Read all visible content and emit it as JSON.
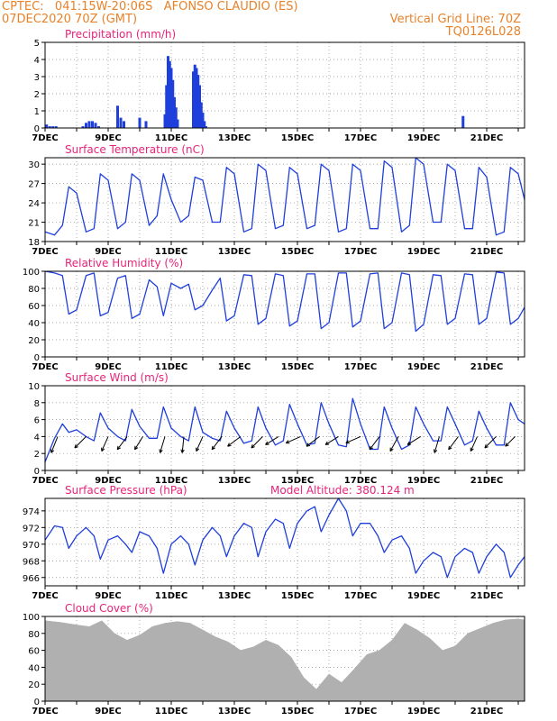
{
  "header": {
    "line1_left": "CPTEC:   041:15W-20:06S   AFONSO CLAUDIO (ES)",
    "line2_left": "07DEC2020 70Z (GMT)",
    "line2_right": "Vertical Grid Line: 70Z",
    "line3_right": "TQ0126L028"
  },
  "colors": {
    "header": "#e8822a",
    "title": "#e8237a",
    "series": "#1f3fdc",
    "cloud": "#b0b0b0",
    "grid": "#888888"
  },
  "x_ticks": [
    "7DEC",
    "9DEC",
    "11DEC",
    "13DEC",
    "15DEC",
    "17DEC",
    "19DEC",
    "21DEC"
  ],
  "chart_data": [
    {
      "id": "precip",
      "type": "bar",
      "title": "Precipitation (mm/h)",
      "ylim": [
        0,
        5
      ],
      "yticks": [
        0,
        1,
        2,
        3,
        4,
        5
      ],
      "x_range_days": [
        7,
        22.2
      ],
      "x": [
        7.05,
        7.15,
        7.25,
        7.35,
        8.2,
        8.3,
        8.4,
        8.5,
        8.6,
        8.7,
        9.3,
        9.4,
        9.5,
        10.0,
        10.2,
        10.8,
        10.85,
        10.9,
        10.95,
        11.0,
        11.05,
        11.1,
        11.15,
        11.2,
        11.7,
        11.75,
        11.8,
        11.85,
        11.9,
        11.95,
        12.0,
        12.05,
        12.1,
        20.25
      ],
      "values": [
        0.2,
        0.1,
        0.1,
        0.1,
        0.1,
        0.3,
        0.4,
        0.4,
        0.3,
        0.1,
        1.3,
        0.6,
        0.4,
        0.6,
        0.4,
        0.8,
        2.5,
        4.2,
        3.9,
        3.5,
        2.8,
        1.8,
        1.2,
        0.5,
        3.3,
        3.7,
        3.5,
        3.1,
        2.5,
        1.5,
        0.9,
        0.4,
        0.1,
        0.7
      ]
    },
    {
      "id": "temp",
      "type": "line",
      "title": "Surface Temperature (nC)",
      "ylim": [
        18,
        31
      ],
      "yticks": [
        18,
        21,
        24,
        27,
        30
      ],
      "x_range_days": [
        7,
        22.2
      ],
      "x": [
        7.0,
        7.3,
        7.55,
        7.75,
        8.0,
        8.3,
        8.55,
        8.75,
        9.0,
        9.3,
        9.55,
        9.75,
        10.0,
        10.3,
        10.55,
        10.75,
        11.0,
        11.3,
        11.55,
        11.75,
        12.0,
        12.3,
        12.55,
        12.75,
        13.0,
        13.3,
        13.55,
        13.75,
        14.0,
        14.3,
        14.55,
        14.75,
        15.0,
        15.3,
        15.55,
        15.75,
        16.0,
        16.3,
        16.55,
        16.75,
        17.0,
        17.3,
        17.55,
        17.75,
        18.0,
        18.3,
        18.55,
        18.75,
        19.0,
        19.3,
        19.55,
        19.75,
        20.0,
        20.3,
        20.55,
        20.75,
        21.0,
        21.3,
        21.55,
        21.75,
        22.0,
        22.2
      ],
      "values": [
        19.5,
        19.0,
        20.5,
        26.5,
        25.5,
        19.5,
        20.0,
        28.5,
        27.5,
        20.0,
        21.0,
        28.5,
        27.5,
        20.5,
        22.0,
        28.5,
        24.5,
        21.0,
        22.0,
        28.0,
        27.5,
        21.0,
        21.0,
        29.5,
        28.5,
        19.5,
        20.0,
        30.0,
        29.0,
        20.0,
        20.5,
        29.5,
        28.5,
        20.0,
        20.5,
        30.0,
        29.0,
        19.5,
        20.0,
        30.0,
        29.0,
        20.0,
        20.0,
        30.5,
        29.5,
        19.5,
        20.5,
        31.0,
        30.0,
        21.0,
        21.0,
        30.0,
        29.0,
        20.0,
        20.0,
        29.5,
        28.0,
        19.0,
        19.5,
        29.5,
        28.5,
        24.5
      ]
    },
    {
      "id": "rh",
      "type": "line",
      "title": "Relative Humidity (%)",
      "ylim": [
        0,
        100
      ],
      "yticks": [
        0,
        20,
        40,
        60,
        80,
        100
      ],
      "x_range_days": [
        7,
        22.2
      ],
      "x": [
        7.0,
        7.3,
        7.55,
        7.75,
        8.0,
        8.3,
        8.55,
        8.75,
        9.0,
        9.3,
        9.55,
        9.75,
        10.0,
        10.3,
        10.55,
        10.75,
        11.0,
        11.3,
        11.55,
        11.75,
        12.0,
        12.3,
        12.55,
        12.75,
        13.0,
        13.3,
        13.55,
        13.75,
        14.0,
        14.3,
        14.55,
        14.75,
        15.0,
        15.3,
        15.55,
        15.75,
        16.0,
        16.3,
        16.55,
        16.75,
        17.0,
        17.3,
        17.55,
        17.75,
        18.0,
        18.3,
        18.55,
        18.75,
        19.0,
        19.3,
        19.55,
        19.75,
        20.0,
        20.3,
        20.55,
        20.75,
        21.0,
        21.3,
        21.55,
        21.75,
        22.0,
        22.2
      ],
      "values": [
        100,
        98,
        95,
        50,
        55,
        95,
        98,
        48,
        52,
        92,
        95,
        45,
        50,
        90,
        82,
        48,
        86,
        80,
        85,
        55,
        60,
        78,
        92,
        42,
        48,
        96,
        95,
        38,
        45,
        97,
        95,
        36,
        42,
        97,
        97,
        33,
        40,
        98,
        98,
        35,
        42,
        97,
        98,
        33,
        40,
        98,
        96,
        30,
        38,
        96,
        95,
        38,
        45,
        97,
        96,
        38,
        45,
        99,
        98,
        38,
        45,
        58
      ]
    },
    {
      "id": "wind",
      "type": "line",
      "title": "Surface Wind (m/s)",
      "ylim": [
        0,
        10
      ],
      "yticks": [
        0,
        2,
        4,
        6,
        8,
        10
      ],
      "x_range_days": [
        7,
        22.2
      ],
      "x": [
        7.0,
        7.3,
        7.55,
        7.75,
        8.0,
        8.3,
        8.55,
        8.75,
        9.0,
        9.3,
        9.55,
        9.75,
        10.0,
        10.3,
        10.55,
        10.75,
        11.0,
        11.3,
        11.55,
        11.75,
        12.0,
        12.3,
        12.55,
        12.75,
        13.0,
        13.3,
        13.55,
        13.75,
        14.0,
        14.3,
        14.55,
        14.75,
        15.0,
        15.3,
        15.55,
        15.75,
        16.0,
        16.3,
        16.55,
        16.75,
        17.0,
        17.3,
        17.55,
        17.75,
        18.0,
        18.3,
        18.55,
        18.75,
        19.0,
        19.3,
        19.55,
        19.75,
        20.0,
        20.3,
        20.55,
        20.75,
        21.0,
        21.3,
        21.55,
        21.75,
        22.0,
        22.2
      ],
      "values": [
        1.0,
        3.8,
        5.5,
        4.5,
        4.8,
        4.0,
        3.5,
        6.8,
        5.0,
        4.0,
        3.5,
        7.2,
        5.2,
        3.8,
        3.8,
        7.5,
        5.0,
        4.0,
        3.5,
        7.5,
        4.5,
        3.8,
        3.5,
        7.0,
        5.0,
        3.2,
        3.5,
        7.5,
        5.0,
        3.0,
        3.5,
        7.8,
        5.5,
        3.0,
        3.2,
        8.0,
        5.5,
        3.0,
        2.8,
        8.5,
        5.5,
        2.5,
        2.5,
        7.5,
        5.0,
        2.5,
        3.0,
        7.5,
        5.5,
        3.5,
        3.5,
        7.5,
        5.5,
        3.0,
        3.5,
        7.0,
        5.0,
        3.0,
        3.0,
        8.0,
        6.0,
        5.5
      ],
      "arrows": [
        {
          "x": 7.4,
          "u": -0.4,
          "v": -1.0
        },
        {
          "x": 8.3,
          "u": -0.7,
          "v": -0.7
        },
        {
          "x": 9.0,
          "u": -0.4,
          "v": -0.9
        },
        {
          "x": 9.6,
          "u": -0.6,
          "v": -0.8
        },
        {
          "x": 10.1,
          "u": -0.5,
          "v": -0.8
        },
        {
          "x": 10.8,
          "u": -0.3,
          "v": -1.0
        },
        {
          "x": 11.4,
          "u": -0.1,
          "v": -1.0
        },
        {
          "x": 12.0,
          "u": -0.4,
          "v": -0.9
        },
        {
          "x": 12.6,
          "u": -0.6,
          "v": -0.8
        },
        {
          "x": 13.2,
          "u": -0.8,
          "v": -0.6
        },
        {
          "x": 13.9,
          "u": -0.7,
          "v": -0.7
        },
        {
          "x": 14.4,
          "u": -0.8,
          "v": -0.5
        },
        {
          "x": 15.1,
          "u": -0.9,
          "v": -0.4
        },
        {
          "x": 15.7,
          "u": -0.8,
          "v": -0.6
        },
        {
          "x": 16.3,
          "u": -0.8,
          "v": -0.5
        },
        {
          "x": 17.0,
          "u": -0.9,
          "v": -0.4
        },
        {
          "x": 17.6,
          "u": -0.6,
          "v": -0.8
        },
        {
          "x": 18.2,
          "u": -0.5,
          "v": -0.9
        },
        {
          "x": 18.9,
          "u": -0.8,
          "v": -0.5
        },
        {
          "x": 19.5,
          "u": -0.3,
          "v": -1.0
        },
        {
          "x": 20.1,
          "u": -0.6,
          "v": -0.8
        },
        {
          "x": 20.7,
          "u": -0.4,
          "v": -0.9
        },
        {
          "x": 21.3,
          "u": -0.7,
          "v": -0.7
        },
        {
          "x": 21.9,
          "u": -0.6,
          "v": -0.6
        }
      ]
    },
    {
      "id": "press",
      "type": "line",
      "title": "Surface Pressure (hPa)",
      "subtitle": "Model Altitude: 380.124 m",
      "ylim": [
        965,
        975.5
      ],
      "yticks": [
        966,
        968,
        970,
        972,
        974
      ],
      "x_range_days": [
        7,
        22.2
      ],
      "x": [
        7.0,
        7.3,
        7.55,
        7.75,
        8.0,
        8.3,
        8.55,
        8.75,
        9.0,
        9.3,
        9.55,
        9.75,
        10.0,
        10.3,
        10.55,
        10.75,
        11.0,
        11.3,
        11.55,
        11.75,
        12.0,
        12.3,
        12.55,
        12.75,
        13.0,
        13.3,
        13.55,
        13.75,
        14.0,
        14.3,
        14.55,
        14.75,
        15.0,
        15.3,
        15.55,
        15.75,
        16.0,
        16.3,
        16.55,
        16.75,
        17.0,
        17.3,
        17.55,
        17.75,
        18.0,
        18.3,
        18.55,
        18.75,
        19.0,
        19.3,
        19.55,
        19.75,
        20.0,
        20.3,
        20.55,
        20.75,
        21.0,
        21.3,
        21.55,
        21.75,
        22.0,
        22.2
      ],
      "values": [
        970.5,
        972.2,
        972.0,
        969.5,
        971.0,
        972.0,
        971.0,
        968.2,
        970.5,
        971.0,
        970.0,
        969.0,
        971.5,
        971.0,
        969.5,
        966.5,
        970.0,
        971.0,
        970.0,
        967.5,
        970.5,
        972.0,
        971.0,
        968.5,
        971.0,
        972.5,
        972.0,
        968.5,
        971.5,
        973.0,
        972.5,
        969.5,
        972.5,
        974.0,
        974.5,
        971.5,
        973.5,
        975.5,
        974.0,
        971.0,
        972.5,
        972.5,
        971.0,
        969.0,
        970.5,
        971.0,
        969.5,
        966.5,
        968.0,
        969.0,
        968.5,
        966.0,
        968.5,
        969.5,
        969.0,
        966.5,
        968.5,
        970.0,
        969.0,
        966.0,
        967.5,
        968.5
      ]
    },
    {
      "id": "cloud",
      "type": "area",
      "title": "Cloud Cover (%)",
      "ylim": [
        0,
        100
      ],
      "yticks": [
        0,
        20,
        40,
        60,
        80,
        100
      ],
      "x_range_days": [
        7,
        22.2
      ],
      "x": [
        7.0,
        7.5,
        8.0,
        8.4,
        8.8,
        9.2,
        9.6,
        10.0,
        10.4,
        10.8,
        11.2,
        11.6,
        12.0,
        12.4,
        12.8,
        13.2,
        13.6,
        14.0,
        14.4,
        14.8,
        15.2,
        15.6,
        16.0,
        16.4,
        16.8,
        17.2,
        17.6,
        18.0,
        18.4,
        18.8,
        19.2,
        19.6,
        20.0,
        20.4,
        20.8,
        21.2,
        21.6,
        22.0,
        22.2
      ],
      "values": [
        95,
        93,
        90,
        88,
        95,
        80,
        72,
        78,
        88,
        92,
        94,
        92,
        84,
        76,
        70,
        60,
        64,
        72,
        66,
        52,
        28,
        14,
        32,
        22,
        38,
        55,
        60,
        72,
        92,
        84,
        74,
        60,
        65,
        80,
        86,
        92,
        96,
        97,
        96
      ]
    }
  ]
}
